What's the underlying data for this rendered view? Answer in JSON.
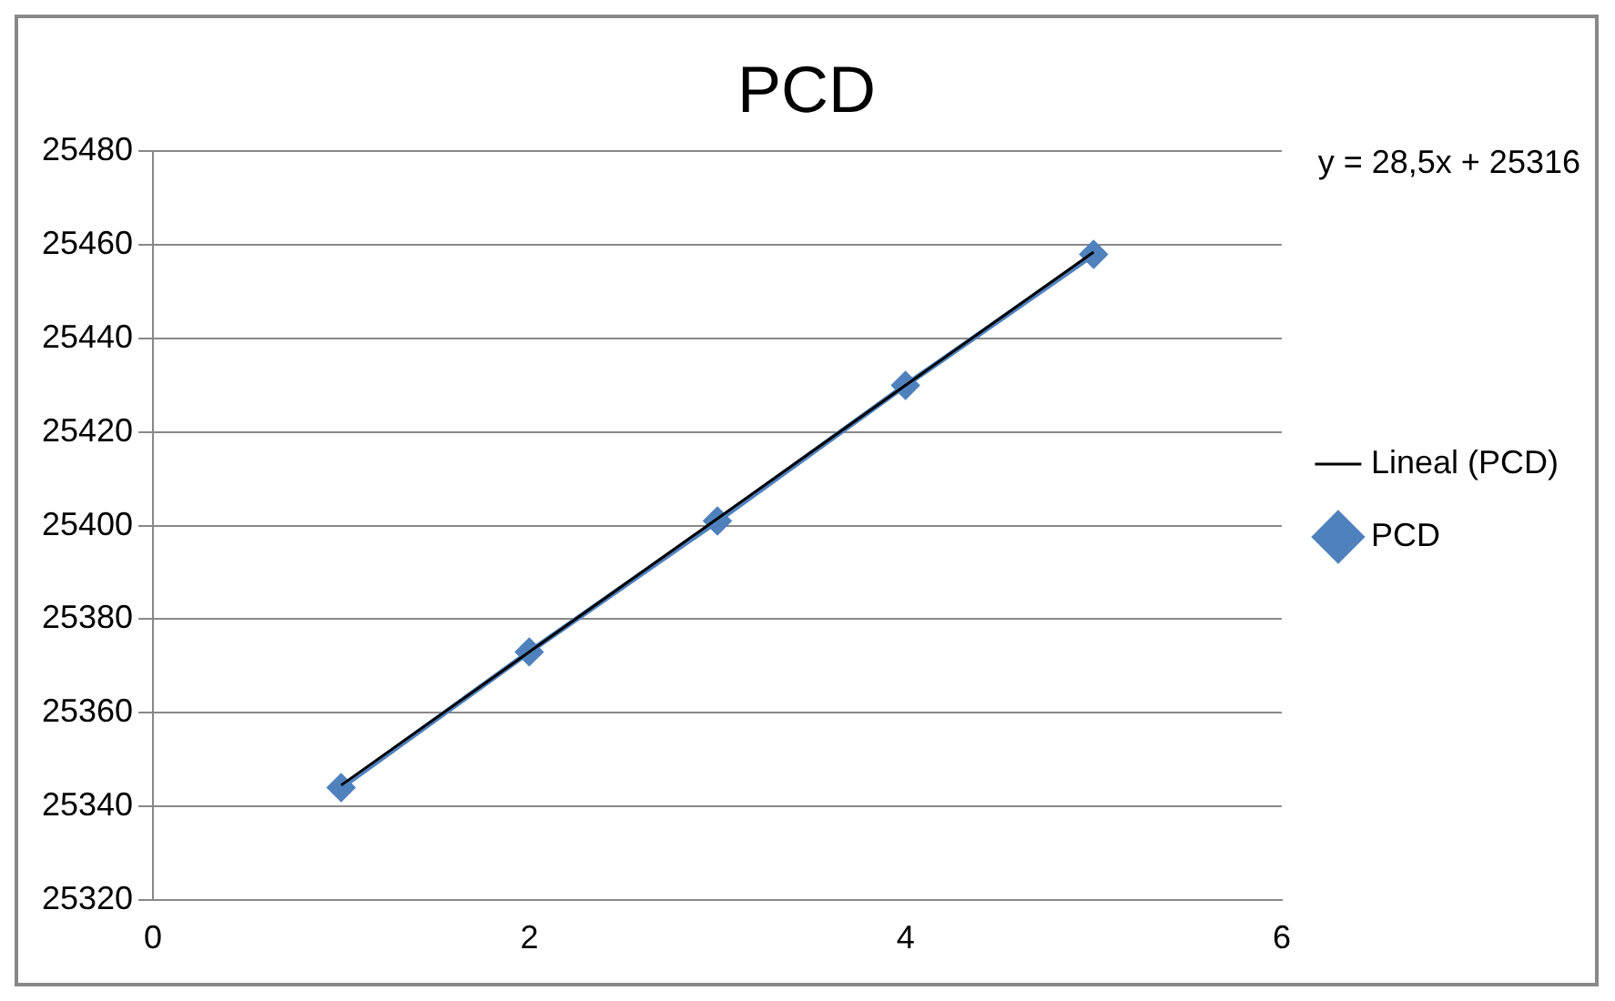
{
  "chart_data": {
    "type": "line",
    "title": "PCD",
    "x": [
      1,
      2,
      3,
      4,
      5
    ],
    "series": [
      {
        "name": "PCD",
        "color": "#4f81bd",
        "values": [
          25344,
          25373,
          25401,
          25430,
          25458
        ],
        "marker": "diamond"
      },
      {
        "name": "Lineal (PCD)",
        "type": "line",
        "color": "#000000",
        "x": [
          1,
          5
        ],
        "values": [
          25344.5,
          25458.5
        ],
        "marker": "none"
      }
    ],
    "xlim": [
      0,
      6
    ],
    "xticks": [
      0,
      2,
      4,
      6
    ],
    "ylim": [
      25320,
      25480
    ],
    "yticks": [
      25320,
      25340,
      25360,
      25380,
      25400,
      25420,
      25440,
      25460,
      25480
    ],
    "grid": "y",
    "legend": "right",
    "annotations": [
      "y = 28,5x + 25316"
    ]
  }
}
